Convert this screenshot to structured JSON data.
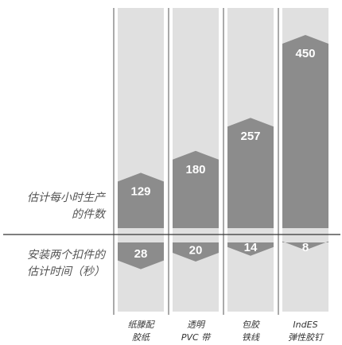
{
  "chart_data": {
    "type": "bar",
    "categories": [
      {
        "line1": "纸滕配",
        "line2": "胶纸"
      },
      {
        "line1": "透明",
        "line2": "PVC 带"
      },
      {
        "line1": "包胶",
        "line2": "铁线"
      },
      {
        "line1": "IndES",
        "line2": "弹性胶钉"
      }
    ],
    "series": [
      {
        "name": "估计每小时生产的件数",
        "values": [
          129,
          180,
          257,
          450
        ]
      },
      {
        "name": "安装两个扣件的估计时间（秒）",
        "values": [
          28,
          20,
          14,
          8
        ]
      }
    ],
    "row_labels": {
      "top": {
        "line1": "估计每小时生产",
        "line2": "的件数"
      },
      "bottom": {
        "line1": "安装两个扣件的",
        "line2": "估计时间（秒）"
      }
    },
    "grid": false,
    "colors": {
      "track": "#e0e0e0",
      "bar": "#8c8c8c",
      "separator": "#555555",
      "divider": "#333333",
      "value_text": "#ffffff"
    }
  }
}
